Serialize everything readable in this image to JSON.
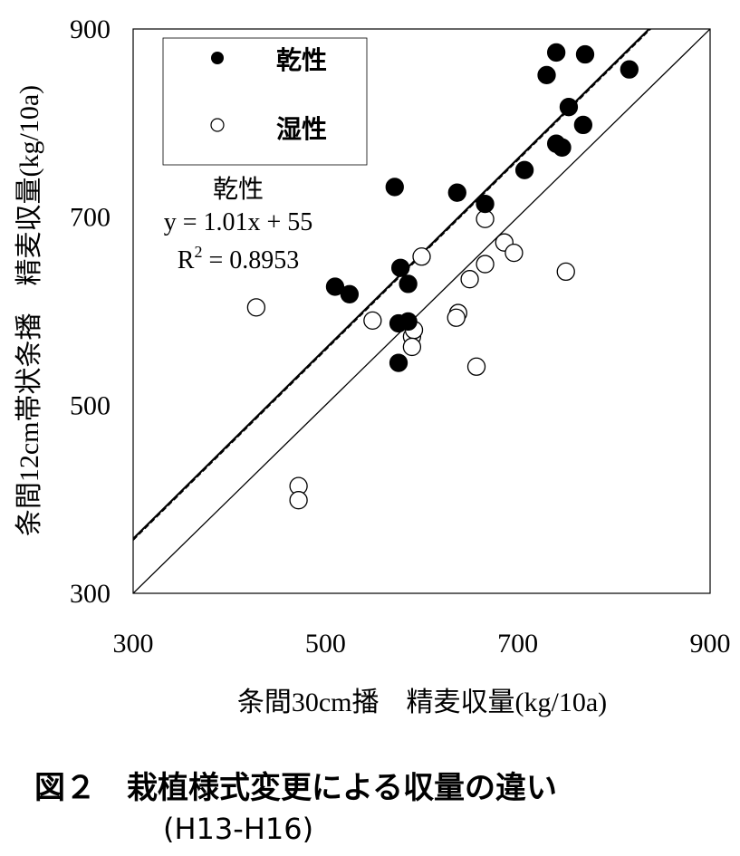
{
  "chart_data": {
    "type": "scatter",
    "xlabel": "条間30cm播　精麦収量(kg/10a)",
    "ylabel": "条間12cm帯状条播　精麦収量(kg/10a)",
    "xlim": [
      300,
      900
    ],
    "ylim": [
      300,
      900
    ],
    "xticks": [
      "300",
      "500",
      "700",
      "900"
    ],
    "yticks": [
      "300",
      "500",
      "700",
      "900"
    ],
    "grid": false,
    "legend_position": "top-left",
    "series": [
      {
        "name": "乾性",
        "marker": "filled-circle",
        "color": "#000000",
        "points": [
          [
            572,
            732
          ],
          [
            637,
            726
          ],
          [
            666,
            714
          ],
          [
            707,
            750
          ],
          [
            740,
            875
          ],
          [
            730,
            851
          ],
          [
            770,
            873
          ],
          [
            816,
            857
          ],
          [
            753,
            817
          ],
          [
            768,
            798
          ],
          [
            740,
            778
          ],
          [
            746,
            774
          ],
          [
            510,
            626
          ],
          [
            525,
            618
          ],
          [
            578,
            646
          ],
          [
            586,
            629
          ],
          [
            576,
            587
          ],
          [
            586,
            589
          ],
          [
            576,
            545
          ]
        ]
      },
      {
        "name": "湿性",
        "marker": "open-circle",
        "color": "#000000",
        "points": [
          [
            428,
            604
          ],
          [
            549,
            590
          ],
          [
            600,
            658
          ],
          [
            638,
            598
          ],
          [
            636,
            593
          ],
          [
            650,
            634
          ],
          [
            666,
            650
          ],
          [
            666,
            698
          ],
          [
            686,
            673
          ],
          [
            696,
            662
          ],
          [
            750,
            642
          ],
          [
            657,
            541
          ],
          [
            590,
            573
          ],
          [
            592,
            580
          ],
          [
            590,
            562
          ],
          [
            472,
            414
          ],
          [
            472,
            399
          ]
        ]
      }
    ],
    "trendline": {
      "slope": 1.01,
      "intercept": 55,
      "series": "乾性"
    },
    "reference_line": {
      "slope": 1,
      "intercept": 0
    },
    "annotation": {
      "series_name": "乾性",
      "equation": "y = 1.01x + 55",
      "r2_prefix": "R",
      "r2_sup": "2",
      "r2_value": " = 0.8953"
    }
  },
  "caption": {
    "line1": "図２　栽植様式変更による収量の違い",
    "line2": "(H13-H16)"
  }
}
